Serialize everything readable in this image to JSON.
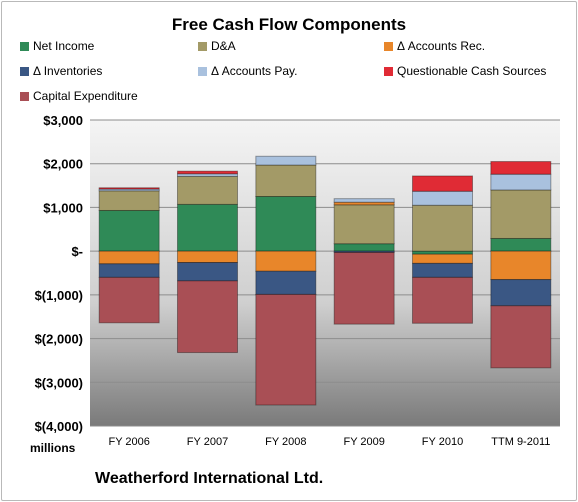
{
  "chart_data": {
    "type": "bar",
    "stacked": true,
    "title": "Free Cash Flow Components",
    "ylabel": "millions",
    "ylim": [
      -4000,
      3000
    ],
    "yticks": [
      3000,
      2000,
      1000,
      0,
      -1000,
      -2000,
      -3000,
      -4000
    ],
    "ytick_labels": [
      "$3,000",
      "$2,000",
      "$1,000",
      "$-",
      "$(1,000)",
      "$(2,000)",
      "$(3,000)",
      "$(4,000)"
    ],
    "grid": true,
    "legend_position": "top",
    "categories": [
      "FY 2006",
      "FY 2007",
      "FY 2008",
      "FY 2009",
      "FY 2010",
      "TTM 9-2011"
    ],
    "series": [
      {
        "name": "Net Income",
        "color": "#2f8a57",
        "values": [
          930,
          1070,
          1250,
          170,
          -70,
          290
        ]
      },
      {
        "name": "D&A",
        "color": "#a39a67",
        "values": [
          450,
          640,
          720,
          890,
          1050,
          1110
        ]
      },
      {
        "name": "Δ Accounts Rec.",
        "color": "#e8862a",
        "values": [
          -290,
          -260,
          -460,
          60,
          -210,
          -650
        ]
      },
      {
        "name": "Δ Inventories",
        "color": "#3a5784",
        "values": [
          -310,
          -420,
          -530,
          -30,
          -320,
          -600
        ]
      },
      {
        "name": "Δ Accounts Pay.",
        "color": "#a9c1de",
        "values": [
          40,
          60,
          200,
          80,
          320,
          360
        ]
      },
      {
        "name": "Questionable Cash Sources",
        "color": "#e02b35",
        "values": [
          30,
          60,
          0,
          0,
          350,
          290
        ]
      },
      {
        "name": "Capital Expenditure",
        "color": "#a94f55",
        "values": [
          -1040,
          -1640,
          -2530,
          -1640,
          -1050,
          -1420
        ]
      }
    ]
  },
  "footer": {
    "company": "Weatherford International Ltd."
  }
}
